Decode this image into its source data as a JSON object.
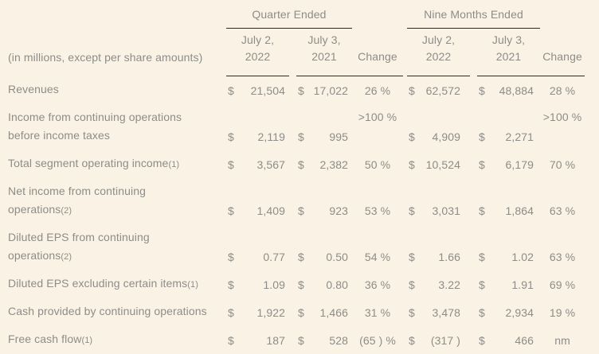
{
  "caption": "(in millions, except per share amounts)",
  "header": {
    "quarter_group": "Quarter Ended",
    "nine_months_group": "Nine Months Ended",
    "q2022_line1": "July 2,",
    "q2022_line2": "2022",
    "q2021_line1": "July 3,",
    "q2021_line2": "2021",
    "change_label": "Change"
  },
  "colors": {
    "background": "#faf3e5",
    "text": "#8d8c88",
    "rule": "#2e2b25"
  },
  "rows": [
    {
      "l1": "Revenues",
      "l1fn": "",
      "l2": "",
      "l2fn": "",
      "q22c": "$",
      "q22": "21,504",
      "q21c": "$",
      "q21": "17,022",
      "qchg": "26 %",
      "n22c": "$",
      "n22": "62,572",
      "n21c": "$",
      "n21": "48,884",
      "nchg": "28 %"
    },
    {
      "l1": "Income from continuing operations",
      "l1fn": "",
      "l2": "before income taxes",
      "l2fn": "",
      "q22c": "$",
      "q22": "2,119",
      "q21c": "$",
      "q21": "995",
      "qchg": ">100 %",
      "n22c": "$",
      "n22": "4,909",
      "n21c": "$",
      "n21": "2,271",
      "nchg": ">100 %"
    },
    {
      "l1": "Total segment operating income",
      "l1fn": "(1)",
      "l2": "",
      "l2fn": "",
      "q22c": "$",
      "q22": "3,567",
      "q21c": "$",
      "q21": "2,382",
      "qchg": "50 %",
      "n22c": "$",
      "n22": "10,524",
      "n21c": "$",
      "n21": "6,179",
      "nchg": "70 %"
    },
    {
      "l1": "Net income from continuing",
      "l1fn": "",
      "l2": "operations",
      "l2fn": "(2)",
      "q22c": "$",
      "q22": "1,409",
      "q21c": "$",
      "q21": "923",
      "qchg": "53 %",
      "n22c": "$",
      "n22": "3,031",
      "n21c": "$",
      "n21": "1,864",
      "nchg": "63 %"
    },
    {
      "l1": "Diluted EPS from continuing",
      "l1fn": "",
      "l2": "operations",
      "l2fn": "(2)",
      "q22c": "$",
      "q22": "0.77",
      "q21c": "$",
      "q21": "0.50",
      "qchg": "54 %",
      "n22c": "$",
      "n22": "1.66",
      "n21c": "$",
      "n21": "1.02",
      "nchg": "63 %"
    },
    {
      "l1": "Diluted EPS excluding certain items",
      "l1fn": "(1)",
      "l2": "",
      "l2fn": "",
      "q22c": "$",
      "q22": "1.09",
      "q21c": "$",
      "q21": "0.80",
      "qchg": "36 %",
      "n22c": "$",
      "n22": "3.22",
      "n21c": "$",
      "n21": "1.91",
      "nchg": "69 %"
    },
    {
      "l1": "Cash provided by continuing operations",
      "l1fn": "",
      "l2": "",
      "l2fn": "",
      "q22c": "$",
      "q22": "1,922",
      "q21c": "$",
      "q21": "1,466",
      "qchg": "31 %",
      "n22c": "$",
      "n22": "3,478",
      "n21c": "$",
      "n21": "2,934",
      "nchg": "19 %"
    },
    {
      "l1": "Free cash flow",
      "l1fn": "(1)",
      "l2": "",
      "l2fn": "",
      "q22c": "$",
      "q22": "187",
      "q21c": "$",
      "q21": "528",
      "qchg": "(65 ) %",
      "n22c": "$",
      "n22": "(317 )",
      "n21c": "$",
      "n21": "466",
      "nchg": "nm"
    }
  ]
}
